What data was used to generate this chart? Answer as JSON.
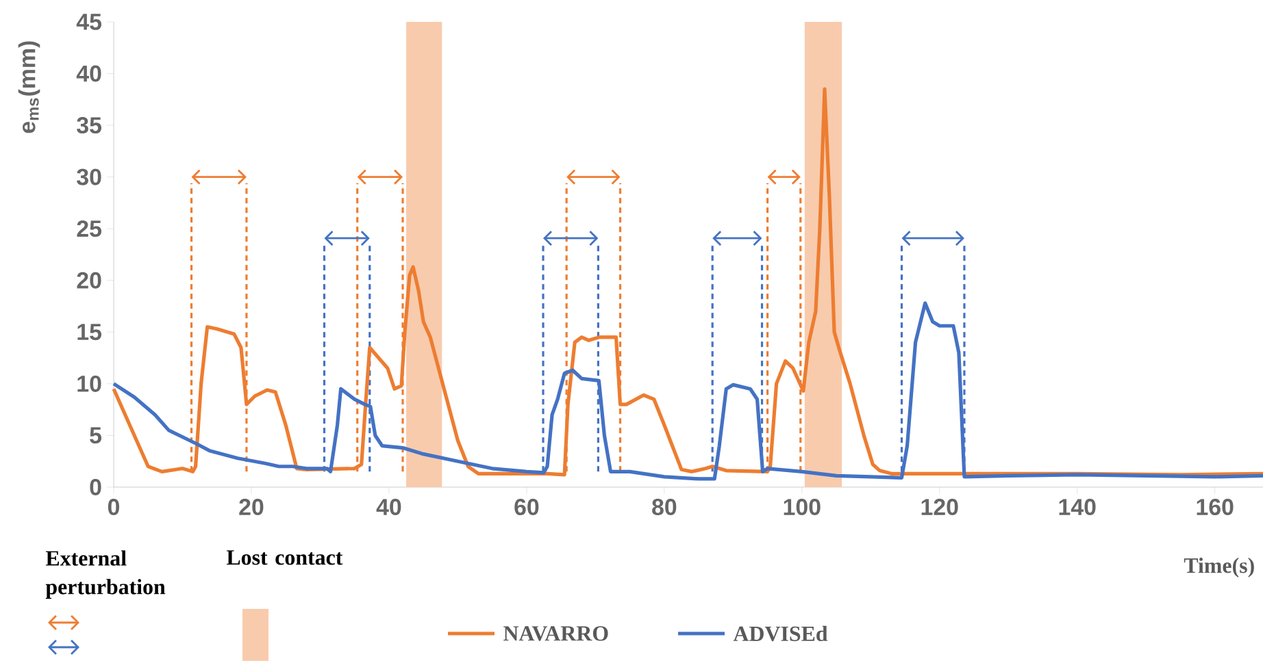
{
  "chart_data": {
    "type": "line",
    "xlabel": "Time(s)",
    "ylabel": "e$_{ms}$(mm)",
    "xlim": [
      0,
      167
    ],
    "xticks": [
      0,
      20,
      40,
      60,
      80,
      100,
      120,
      140,
      160
    ],
    "ylim": [
      0,
      45
    ],
    "yticks": [
      0,
      5,
      10,
      15,
      20,
      25,
      30,
      35,
      40,
      45
    ],
    "legend": "bottom",
    "series": [
      {
        "name": "NAVARRO",
        "color": "#ed7d31",
        "x": [
          0,
          3,
          5,
          7,
          10,
          11.5,
          11.9,
          12.7,
          13.6,
          15,
          17.5,
          18.5,
          19.3,
          20.5,
          22.3,
          23.5,
          25,
          26.6,
          28,
          35,
          36,
          36.6,
          37.2,
          38.5,
          39.8,
          40.8,
          41.8,
          42.3,
          43,
          43.5,
          44.3,
          45,
          46,
          48,
          50,
          51.5,
          53,
          55,
          63,
          65.5,
          66,
          67,
          68,
          69,
          70.5,
          73,
          73.6,
          74.5,
          77,
          78.5,
          80,
          82.5,
          84,
          86,
          87,
          89,
          95,
          95.4,
          96.3,
          97.6,
          98.7,
          100.2,
          101,
          102,
          102.6,
          103.3,
          104,
          104.7,
          105.4,
          107,
          109,
          110.3,
          111.3,
          113,
          125,
          140,
          155,
          167
        ],
        "values": [
          9.5,
          5,
          2,
          1.5,
          1.8,
          1.5,
          2,
          10,
          15.5,
          15.3,
          14.8,
          13.5,
          8,
          8.8,
          9.4,
          9.2,
          6,
          1.8,
          1.7,
          1.8,
          2.2,
          8,
          13.5,
          12.5,
          11.5,
          9.5,
          9.8,
          15,
          20.5,
          21.3,
          19,
          16,
          14.5,
          9.5,
          4.5,
          2,
          1.3,
          1.3,
          1.3,
          1.2,
          8,
          14,
          14.5,
          14.2,
          14.5,
          14.5,
          8,
          8,
          8.9,
          8.5,
          6,
          1.7,
          1.5,
          1.8,
          2,
          1.6,
          1.5,
          2,
          10,
          12.2,
          11.5,
          9.3,
          14,
          17,
          25,
          38.5,
          28,
          15,
          13.4,
          10,
          5,
          2.2,
          1.6,
          1.3,
          1.3,
          1.3,
          1.2,
          1.3
        ]
      },
      {
        "name": "ADVISEd",
        "color": "#4472c4",
        "x": [
          0,
          3,
          6,
          8,
          12,
          14,
          18,
          22,
          24,
          26,
          28,
          31,
          31.5,
          32.5,
          33,
          35,
          36.5,
          37.3,
          38,
          39,
          42,
          45,
          50,
          55,
          60,
          62.5,
          63,
          63.7,
          64.5,
          65.5,
          66.7,
          68,
          70.5,
          71.3,
          72.2,
          75,
          80,
          85,
          87.3,
          88,
          89,
          90,
          92.5,
          93.5,
          94.3,
          95,
          100,
          105,
          110,
          114.5,
          115.3,
          116.5,
          117.9,
          119,
          120,
          122,
          122.8,
          123.6,
          130,
          140,
          150,
          160,
          167
        ],
        "values": [
          10,
          8.7,
          7,
          5.5,
          4.2,
          3.5,
          2.8,
          2.3,
          2,
          2,
          1.8,
          1.8,
          1.5,
          6,
          9.5,
          8.5,
          8,
          7.8,
          5,
          4,
          3.8,
          3.2,
          2.5,
          1.8,
          1.5,
          1.4,
          2,
          7,
          8.5,
          11,
          11.3,
          10.5,
          10.3,
          5,
          1.5,
          1.5,
          1,
          0.8,
          0.8,
          4,
          9.5,
          9.9,
          9.5,
          8.5,
          1.5,
          1.8,
          1.5,
          1.1,
          1,
          0.9,
          4,
          14,
          17.8,
          16,
          15.6,
          15.6,
          13,
          1,
          1.1,
          1.2,
          1.1,
          1,
          1.1
        ]
      }
    ],
    "annotations": [
      "External perturbation",
      "Lost contact"
    ],
    "ref_lines": [
      {
        "axis": "x",
        "value": 11.3,
        "color": "#ed7d31",
        "line_style": "dashed"
      },
      {
        "axis": "x",
        "value": 19.3,
        "color": "#ed7d31",
        "line_style": "dashed"
      },
      {
        "axis": "x",
        "value": 35.4,
        "color": "#ed7d31",
        "line_style": "dashed"
      },
      {
        "axis": "x",
        "value": 42,
        "color": "#ed7d31",
        "line_style": "dashed"
      },
      {
        "axis": "x",
        "value": 65.8,
        "color": "#ed7d31",
        "line_style": "dashed"
      },
      {
        "axis": "x",
        "value": 73.6,
        "color": "#ed7d31",
        "line_style": "dashed"
      },
      {
        "axis": "x",
        "value": 95,
        "color": "#ed7d31",
        "line_style": "dashed"
      },
      {
        "axis": "x",
        "value": 99.8,
        "color": "#ed7d31",
        "line_style": "dashed"
      },
      {
        "axis": "x",
        "value": 30.6,
        "color": "#4472c4",
        "line_style": "dashed"
      },
      {
        "axis": "x",
        "value": 37.2,
        "color": "#4472c4",
        "line_style": "dashed"
      },
      {
        "axis": "x",
        "value": 62.4,
        "color": "#4472c4",
        "line_style": "dashed"
      },
      {
        "axis": "x",
        "value": 70.4,
        "color": "#4472c4",
        "line_style": "dashed"
      },
      {
        "axis": "x",
        "value": 87,
        "color": "#4472c4",
        "line_style": "dashed"
      },
      {
        "axis": "x",
        "value": 94.2,
        "color": "#4472c4",
        "line_style": "dashed"
      },
      {
        "axis": "x",
        "value": 114.5,
        "color": "#4472c4",
        "line_style": "dashed"
      },
      {
        "axis": "x",
        "value": 123.6,
        "color": "#4472c4",
        "line_style": "dashed"
      }
    ],
    "bands": [
      {
        "axis": "x",
        "from": 42.5,
        "to": 47.7,
        "color": "#f8cbad"
      },
      {
        "axis": "x",
        "from": 100.4,
        "to": 105.8,
        "color": "#f8cbad"
      }
    ]
  }
}
